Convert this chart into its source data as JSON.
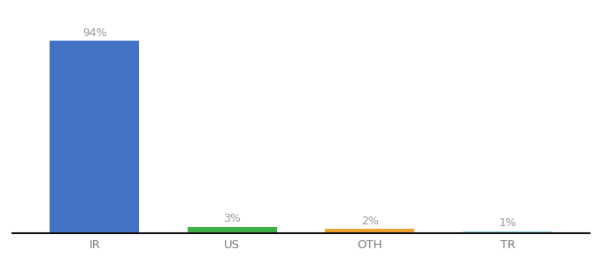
{
  "categories": [
    "IR",
    "US",
    "OTH",
    "TR"
  ],
  "values": [
    94,
    3,
    2,
    1
  ],
  "labels": [
    "94%",
    "3%",
    "2%",
    "1%"
  ],
  "bar_colors": [
    "#4472c4",
    "#3cb043",
    "#f0a030",
    "#87ceeb"
  ],
  "background_color": "#ffffff",
  "ylim": [
    0,
    105
  ],
  "bar_width": 0.65,
  "label_fontsize": 9,
  "tick_fontsize": 9.5,
  "label_color": "#999999",
  "tick_color": "#777777"
}
